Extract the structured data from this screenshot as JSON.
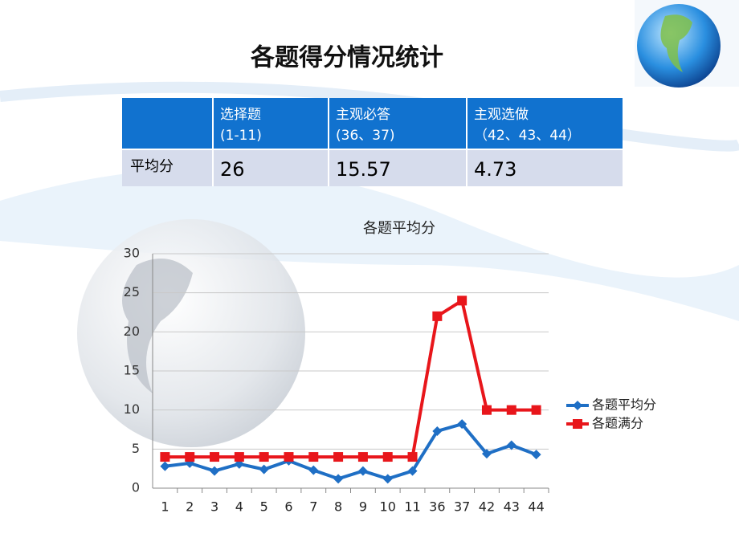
{
  "title": "各题得分情况统计",
  "table": {
    "columns": [
      {
        "label": "选择题",
        "sub": "(1-11)"
      },
      {
        "label": "主观必答",
        "sub": "(36、37)"
      },
      {
        "label": "主观选做",
        "sub": "（42、43、44）"
      }
    ],
    "rows": [
      {
        "label": "平均分",
        "values": [
          26,
          15.57,
          4.73
        ]
      }
    ]
  },
  "chart_data": {
    "type": "line",
    "title": "各题平均分",
    "categories": [
      "1",
      "2",
      "3",
      "4",
      "5",
      "6",
      "7",
      "8",
      "9",
      "10",
      "11",
      "36",
      "37",
      "42",
      "43",
      "44"
    ],
    "series": [
      {
        "name": "各题平均分",
        "color": "#1f6fc5",
        "marker": "diamond",
        "values": [
          2.8,
          3.2,
          2.2,
          3.1,
          2.4,
          3.5,
          2.3,
          1.2,
          2.2,
          1.2,
          2.2,
          7.3,
          8.2,
          4.4,
          5.5,
          4.3
        ]
      },
      {
        "name": "各题满分",
        "color": "#e8161b",
        "marker": "square",
        "values": [
          4,
          4,
          4,
          4,
          4,
          4,
          4,
          4,
          4,
          4,
          4,
          22,
          24,
          10,
          10,
          10
        ]
      }
    ],
    "ylim": [
      0,
      30
    ],
    "yticks": [
      0,
      5,
      10,
      15,
      20,
      25,
      30
    ],
    "grid": true,
    "legend": "right"
  }
}
